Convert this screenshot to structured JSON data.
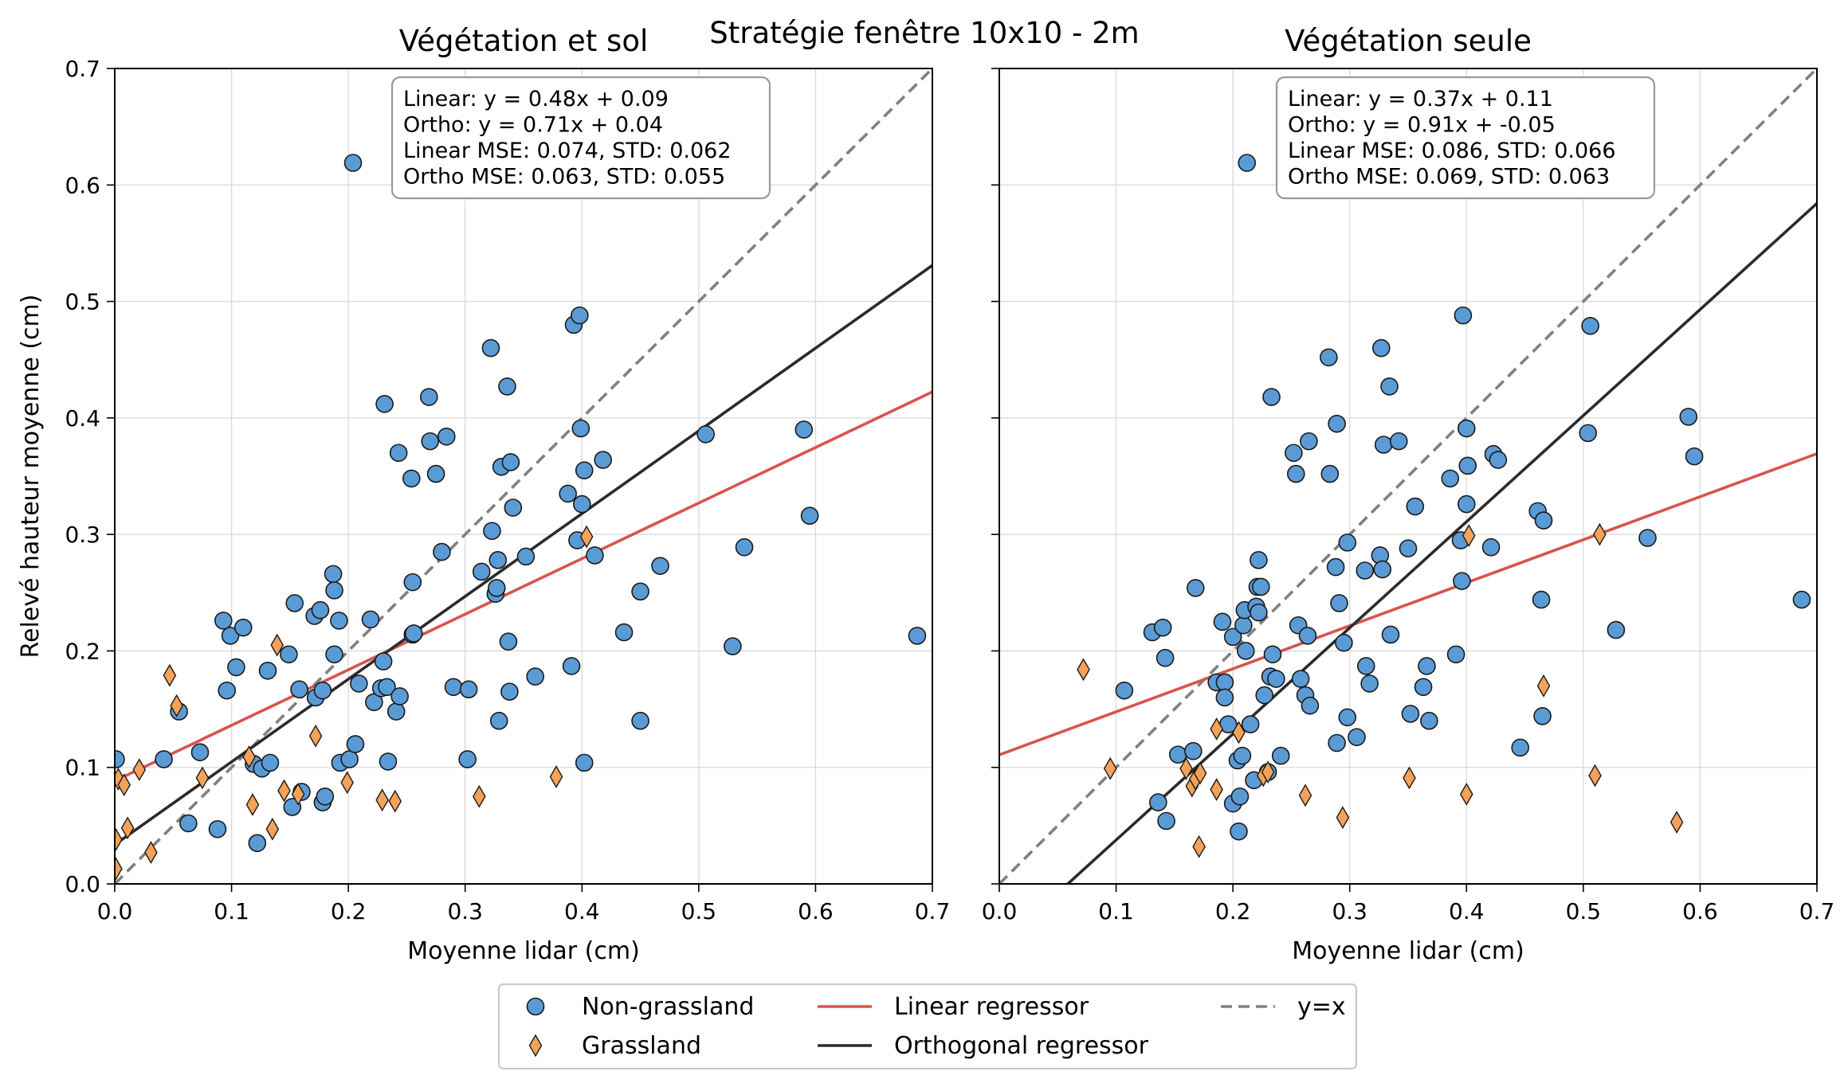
{
  "figure": {
    "suptitle": "Stratégie fenêtre 10x10 - 2m"
  },
  "legend": {
    "items": [
      {
        "label": "Non-grassland",
        "kind": "circle",
        "color": "#5b9bd5"
      },
      {
        "label": "Grassland",
        "kind": "diamond",
        "color": "#f4a259"
      },
      {
        "label": "Linear regressor",
        "kind": "line",
        "color": "#d9534f"
      },
      {
        "label": "Orthogonal regressor",
        "kind": "line",
        "color": "#2b2b2b"
      },
      {
        "label": "y=x",
        "kind": "dashed",
        "color": "#808080"
      }
    ]
  },
  "colors": {
    "non_grassland": "#5b9bd5",
    "grassland": "#f4a259",
    "linear": "#d9534f",
    "ortho": "#2b2b2b",
    "identity": "#808080"
  },
  "chart_data": [
    {
      "type": "scatter",
      "title": "Végétation et sol",
      "xlabel": "Moyenne lidar (cm)",
      "ylabel": "Relevé hauteur moyenne (cm)",
      "xlim": [
        0,
        0.7
      ],
      "ylim": [
        0,
        0.7
      ],
      "xticks": [
        "0.0",
        "0.1",
        "0.2",
        "0.3",
        "0.4",
        "0.5",
        "0.6",
        "0.7"
      ],
      "yticks": [
        "0.0",
        "0.1",
        "0.2",
        "0.3",
        "0.4",
        "0.5",
        "0.6",
        "0.7"
      ],
      "grid": true,
      "annotation": [
        "Linear: y = 0.48x + 0.09",
        "Ortho: y = 0.71x + 0.04",
        "Linear MSE: 0.074, STD: 0.062",
        "Ortho MSE: 0.063, STD: 0.055"
      ],
      "lines": {
        "linear": {
          "slope": 0.4771,
          "intercept": 0.0884
        },
        "ortho": {
          "slope": 0.7104,
          "intercept": 0.0337
        },
        "identity": {
          "slope": 1,
          "intercept": 0
        }
      },
      "series": [
        {
          "name": "Non-grassland",
          "points": [
            [
              0.001,
              0.107
            ],
            [
              0.042,
              0.107
            ],
            [
              0.055,
              0.148
            ],
            [
              0.063,
              0.052
            ],
            [
              0.073,
              0.113
            ],
            [
              0.088,
              0.047
            ],
            [
              0.093,
              0.226
            ],
            [
              0.096,
              0.166
            ],
            [
              0.099,
              0.213
            ],
            [
              0.104,
              0.186
            ],
            [
              0.11,
              0.22
            ],
            [
              0.119,
              0.103
            ],
            [
              0.122,
              0.035
            ],
            [
              0.126,
              0.099
            ],
            [
              0.131,
              0.183
            ],
            [
              0.133,
              0.104
            ],
            [
              0.149,
              0.197
            ],
            [
              0.152,
              0.066
            ],
            [
              0.154,
              0.241
            ],
            [
              0.158,
              0.167
            ],
            [
              0.16,
              0.079
            ],
            [
              0.171,
              0.23
            ],
            [
              0.172,
              0.16
            ],
            [
              0.176,
              0.235
            ],
            [
              0.178,
              0.07
            ],
            [
              0.178,
              0.166
            ],
            [
              0.18,
              0.075
            ],
            [
              0.187,
              0.266
            ],
            [
              0.188,
              0.252
            ],
            [
              0.188,
              0.197
            ],
            [
              0.192,
              0.226
            ],
            [
              0.193,
              0.104
            ],
            [
              0.201,
              0.107
            ],
            [
              0.204,
              0.619
            ],
            [
              0.206,
              0.12
            ],
            [
              0.209,
              0.172
            ],
            [
              0.219,
              0.227
            ],
            [
              0.222,
              0.156
            ],
            [
              0.228,
              0.168
            ],
            [
              0.23,
              0.191
            ],
            [
              0.231,
              0.412
            ],
            [
              0.233,
              0.169
            ],
            [
              0.234,
              0.105
            ],
            [
              0.241,
              0.148
            ],
            [
              0.243,
              0.37
            ],
            [
              0.244,
              0.161
            ],
            [
              0.254,
              0.348
            ],
            [
              0.255,
              0.214
            ],
            [
              0.255,
              0.259
            ],
            [
              0.256,
              0.215
            ],
            [
              0.269,
              0.418
            ],
            [
              0.27,
              0.38
            ],
            [
              0.275,
              0.352
            ],
            [
              0.28,
              0.285
            ],
            [
              0.284,
              0.384
            ],
            [
              0.29,
              0.169
            ],
            [
              0.302,
              0.107
            ],
            [
              0.303,
              0.167
            ],
            [
              0.314,
              0.268
            ],
            [
              0.322,
              0.46
            ],
            [
              0.323,
              0.303
            ],
            [
              0.326,
              0.249
            ],
            [
              0.327,
              0.254
            ],
            [
              0.328,
              0.278
            ],
            [
              0.329,
              0.14
            ],
            [
              0.331,
              0.358
            ],
            [
              0.336,
              0.427
            ],
            [
              0.337,
              0.208
            ],
            [
              0.338,
              0.165
            ],
            [
              0.339,
              0.362
            ],
            [
              0.341,
              0.323
            ],
            [
              0.352,
              0.281
            ],
            [
              0.36,
              0.178
            ],
            [
              0.388,
              0.335
            ],
            [
              0.391,
              0.187
            ],
            [
              0.393,
              0.48
            ],
            [
              0.396,
              0.295
            ],
            [
              0.398,
              0.488
            ],
            [
              0.399,
              0.391
            ],
            [
              0.4,
              0.326
            ],
            [
              0.402,
              0.355
            ],
            [
              0.402,
              0.104
            ],
            [
              0.411,
              0.282
            ],
            [
              0.418,
              0.364
            ],
            [
              0.436,
              0.216
            ],
            [
              0.45,
              0.251
            ],
            [
              0.45,
              0.14
            ],
            [
              0.467,
              0.273
            ],
            [
              0.506,
              0.386
            ],
            [
              0.529,
              0.204
            ],
            [
              0.539,
              0.289
            ],
            [
              0.59,
              0.39
            ],
            [
              0.595,
              0.316
            ],
            [
              0.687,
              0.213
            ]
          ]
        },
        {
          "name": "Grassland",
          "points": [
            [
              0.001,
              0.038
            ],
            [
              0.001,
              0.013
            ],
            [
              0.003,
              0.09
            ],
            [
              0.008,
              0.085
            ],
            [
              0.011,
              0.048
            ],
            [
              0.021,
              0.098
            ],
            [
              0.031,
              0.027
            ],
            [
              0.047,
              0.179
            ],
            [
              0.053,
              0.153
            ],
            [
              0.075,
              0.091
            ],
            [
              0.115,
              0.109
            ],
            [
              0.118,
              0.068
            ],
            [
              0.135,
              0.047
            ],
            [
              0.139,
              0.205
            ],
            [
              0.145,
              0.08
            ],
            [
              0.157,
              0.077
            ],
            [
              0.172,
              0.127
            ],
            [
              0.199,
              0.087
            ],
            [
              0.229,
              0.072
            ],
            [
              0.24,
              0.071
            ],
            [
              0.312,
              0.075
            ],
            [
              0.378,
              0.092
            ],
            [
              0.404,
              0.298
            ]
          ]
        }
      ]
    },
    {
      "type": "scatter",
      "title": "Végétation seule",
      "xlabel": "Moyenne lidar (cm)",
      "ylabel": "",
      "xlim": [
        0,
        0.7
      ],
      "ylim": [
        0,
        0.7
      ],
      "xticks": [
        "0.0",
        "0.1",
        "0.2",
        "0.3",
        "0.4",
        "0.5",
        "0.6",
        "0.7"
      ],
      "yticks": [],
      "grid": true,
      "annotation": [
        "Linear: y = 0.37x + 0.11",
        "Ortho: y = 0.91x + -0.05",
        "Linear MSE: 0.086, STD: 0.066",
        "Ortho MSE: 0.069, STD: 0.063"
      ],
      "lines": {
        "linear": {
          "slope": 0.3693,
          "intercept": 0.1108
        },
        "ortho": {
          "slope": 0.9108,
          "intercept": -0.0534
        },
        "identity": {
          "slope": 1,
          "intercept": 0
        }
      },
      "series": [
        {
          "name": "Non-grassland",
          "points": [
            [
              0.107,
              0.166
            ],
            [
              0.131,
              0.216
            ],
            [
              0.136,
              0.07
            ],
            [
              0.14,
              0.22
            ],
            [
              0.142,
              0.194
            ],
            [
              0.143,
              0.054
            ],
            [
              0.153,
              0.111
            ],
            [
              0.166,
              0.114
            ],
            [
              0.168,
              0.254
            ],
            [
              0.186,
              0.173
            ],
            [
              0.191,
              0.225
            ],
            [
              0.193,
              0.173
            ],
            [
              0.193,
              0.16
            ],
            [
              0.196,
              0.137
            ],
            [
              0.2,
              0.069
            ],
            [
              0.2,
              0.212
            ],
            [
              0.204,
              0.106
            ],
            [
              0.205,
              0.045
            ],
            [
              0.206,
              0.075
            ],
            [
              0.208,
              0.11
            ],
            [
              0.209,
              0.222
            ],
            [
              0.21,
              0.235
            ],
            [
              0.211,
              0.2
            ],
            [
              0.215,
              0.137
            ],
            [
              0.218,
              0.089
            ],
            [
              0.22,
              0.238
            ],
            [
              0.221,
              0.255
            ],
            [
              0.222,
              0.278
            ],
            [
              0.222,
              0.233
            ],
            [
              0.224,
              0.255
            ],
            [
              0.227,
              0.162
            ],
            [
              0.23,
              0.096
            ],
            [
              0.232,
              0.178
            ],
            [
              0.233,
              0.418
            ],
            [
              0.234,
              0.197
            ],
            [
              0.237,
              0.176
            ],
            [
              0.241,
              0.11
            ],
            [
              0.252,
              0.37
            ],
            [
              0.254,
              0.352
            ],
            [
              0.256,
              0.222
            ],
            [
              0.258,
              0.176
            ],
            [
              0.262,
              0.162
            ],
            [
              0.264,
              0.213
            ],
            [
              0.265,
              0.38
            ],
            [
              0.266,
              0.153
            ],
            [
              0.282,
              0.452
            ],
            [
              0.283,
              0.352
            ],
            [
              0.288,
              0.272
            ],
            [
              0.289,
              0.395
            ],
            [
              0.289,
              0.121
            ],
            [
              0.291,
              0.241
            ],
            [
              0.295,
              0.207
            ],
            [
              0.298,
              0.293
            ],
            [
              0.298,
              0.143
            ],
            [
              0.306,
              0.126
            ],
            [
              0.313,
              0.269
            ],
            [
              0.314,
              0.187
            ],
            [
              0.317,
              0.172
            ],
            [
              0.326,
              0.282
            ],
            [
              0.327,
              0.46
            ],
            [
              0.328,
              0.27
            ],
            [
              0.329,
              0.377
            ],
            [
              0.334,
              0.427
            ],
            [
              0.335,
              0.214
            ],
            [
              0.342,
              0.38
            ],
            [
              0.35,
              0.288
            ],
            [
              0.352,
              0.146
            ],
            [
              0.356,
              0.324
            ],
            [
              0.363,
              0.169
            ],
            [
              0.366,
              0.187
            ],
            [
              0.368,
              0.14
            ],
            [
              0.386,
              0.348
            ],
            [
              0.391,
              0.197
            ],
            [
              0.395,
              0.295
            ],
            [
              0.396,
              0.26
            ],
            [
              0.397,
              0.488
            ],
            [
              0.4,
              0.391
            ],
            [
              0.4,
              0.326
            ],
            [
              0.401,
              0.359
            ],
            [
              0.421,
              0.289
            ],
            [
              0.423,
              0.369
            ],
            [
              0.427,
              0.364
            ],
            [
              0.446,
              0.117
            ],
            [
              0.461,
              0.32
            ],
            [
              0.464,
              0.244
            ],
            [
              0.465,
              0.144
            ],
            [
              0.466,
              0.312
            ],
            [
              0.504,
              0.387
            ],
            [
              0.506,
              0.479
            ],
            [
              0.528,
              0.218
            ],
            [
              0.555,
              0.297
            ],
            [
              0.59,
              0.401
            ],
            [
              0.595,
              0.367
            ],
            [
              0.687,
              0.244
            ],
            [
              0.212,
              0.619
            ]
          ]
        },
        {
          "name": "Grassland",
          "points": [
            [
              0.072,
              0.184
            ],
            [
              0.095,
              0.099
            ],
            [
              0.16,
              0.099
            ],
            [
              0.165,
              0.084
            ],
            [
              0.168,
              0.09
            ],
            [
              0.171,
              0.032
            ],
            [
              0.172,
              0.095
            ],
            [
              0.186,
              0.081
            ],
            [
              0.186,
              0.133
            ],
            [
              0.205,
              0.13
            ],
            [
              0.226,
              0.093
            ],
            [
              0.23,
              0.096
            ],
            [
              0.262,
              0.076
            ],
            [
              0.294,
              0.057
            ],
            [
              0.351,
              0.091
            ],
            [
              0.4,
              0.077
            ],
            [
              0.402,
              0.299
            ],
            [
              0.466,
              0.17
            ],
            [
              0.51,
              0.093
            ],
            [
              0.514,
              0.3
            ],
            [
              0.58,
              0.053
            ]
          ]
        }
      ]
    }
  ]
}
